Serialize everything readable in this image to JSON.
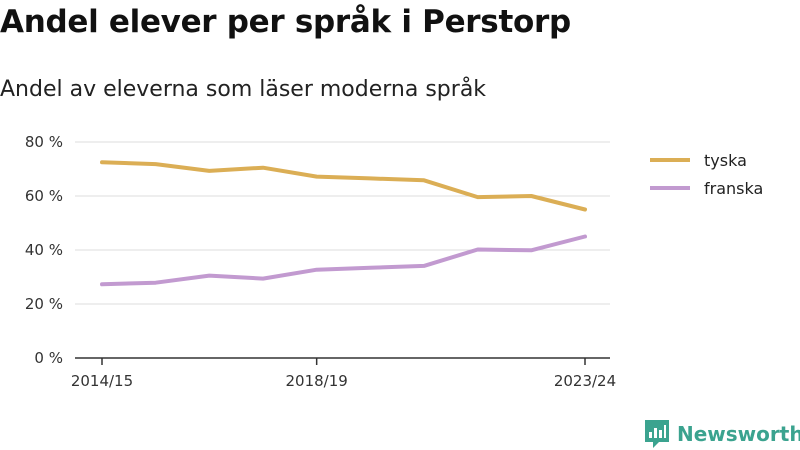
{
  "title": "Andel elever per språk i Perstorp",
  "subtitle": "Andel av eleverna som läser moderna språk",
  "brand": {
    "name": "Newsworthy",
    "icon": "newsworthy-logo-icon",
    "color": "#3ba38f"
  },
  "chart_data": {
    "type": "line",
    "x": [
      "2014/15",
      "2015/16",
      "2016/17",
      "2017/18",
      "2018/19",
      "2019/20",
      "2020/21",
      "2021/22",
      "2022/23",
      "2023/24"
    ],
    "x_tick_labels": [
      "2014/15",
      "2018/19",
      "2023/24"
    ],
    "y_ticks": [
      0,
      20,
      40,
      60,
      80
    ],
    "y_tick_labels": [
      "0 %",
      "20 %",
      "40 %",
      "60 %",
      "80 %"
    ],
    "ylim": [
      0,
      80
    ],
    "grid": true,
    "legend_position": "right",
    "series": [
      {
        "name": "tyska",
        "color": "#dbae55",
        "values": [
          72.5,
          71.8,
          69.3,
          70.5,
          67.2,
          66.5,
          65.8,
          59.6,
          60.0,
          55.0
        ]
      },
      {
        "name": "franska",
        "color": "#c29ad0",
        "values": [
          27.3,
          27.9,
          30.5,
          29.4,
          32.7,
          33.4,
          34.1,
          40.2,
          39.9,
          45.0
        ]
      }
    ]
  }
}
